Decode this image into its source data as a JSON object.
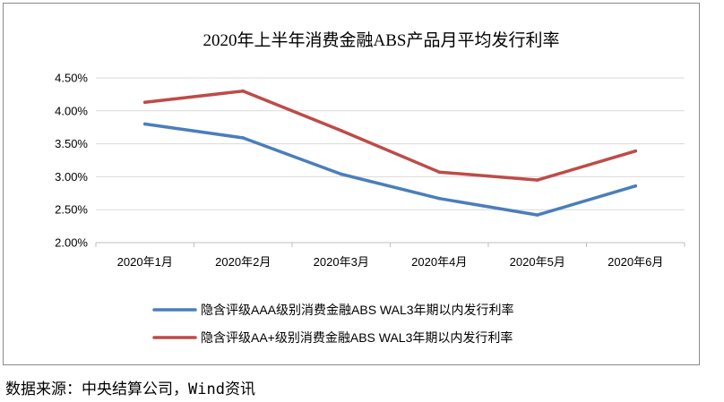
{
  "chart_data": {
    "type": "line",
    "title": "2020年上半年消费金融ABS产品月平均发行利率",
    "categories": [
      "2020年1月",
      "2020年2月",
      "2020年3月",
      "2020年4月",
      "2020年5月",
      "2020年6月"
    ],
    "ylim": [
      2.0,
      4.5
    ],
    "yticks": [
      2.0,
      2.5,
      3.0,
      3.5,
      4.0,
      4.5
    ],
    "ytick_labels": [
      "2.00%",
      "2.50%",
      "3.00%",
      "3.50%",
      "4.00%",
      "4.50%"
    ],
    "grid": true,
    "legend_position": "bottom",
    "series": [
      {
        "name": "隐含评级AAA级别消费金融ABS WAL3年期以内发行利率",
        "color": "#4a7ebb",
        "values": [
          3.8,
          3.59,
          3.04,
          2.67,
          2.42,
          2.86
        ]
      },
      {
        "name": "隐含评级AA+级别消费金融ABS WAL3年期以内发行利率",
        "color": "#be4b48",
        "values": [
          4.13,
          4.3,
          3.7,
          3.07,
          2.95,
          3.39
        ]
      }
    ]
  },
  "source_note": "数据来源：中央结算公司，Wind资讯"
}
